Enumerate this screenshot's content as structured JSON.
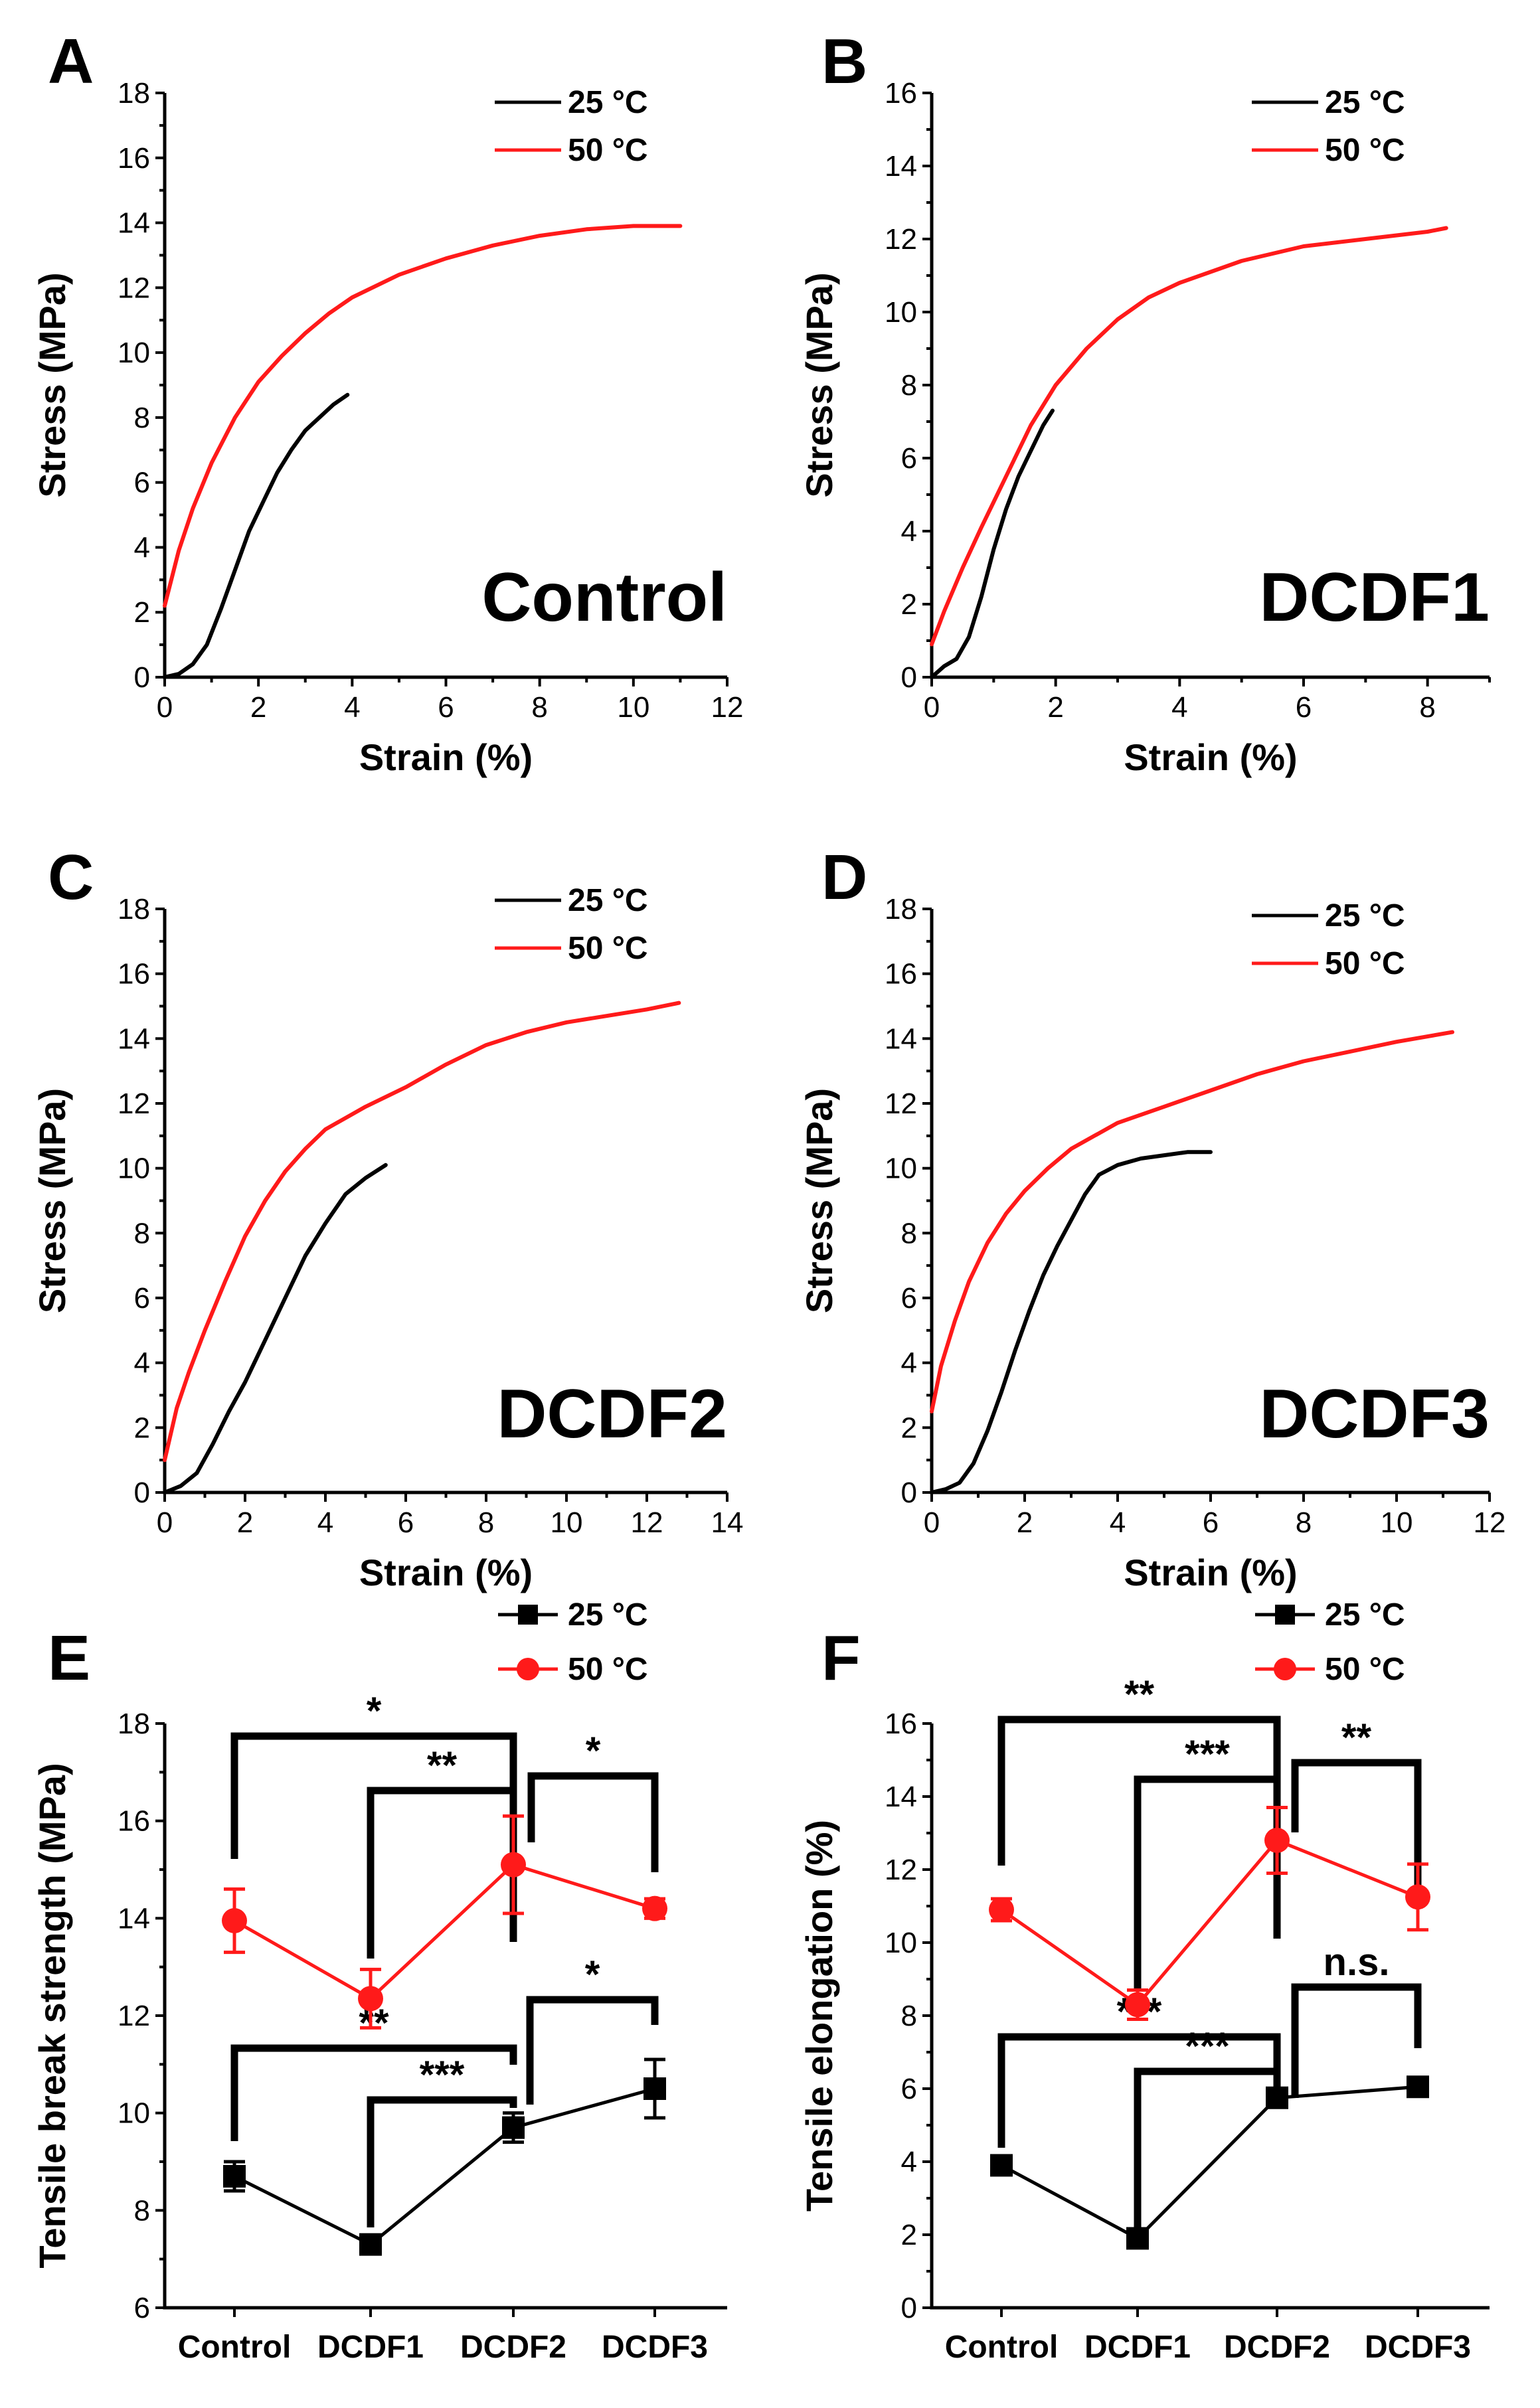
{
  "colors": {
    "c25": "#000000",
    "c50": "#ff1a1a"
  },
  "legend": {
    "s25": "25 °C",
    "s50": "50 °C"
  },
  "chart_data": [
    {
      "id": "A",
      "type": "line",
      "panel_label": "A",
      "sample": "Control",
      "xlabel": "Strain (%)",
      "ylabel": "Stress (MPa)",
      "xlim": [
        0,
        12
      ],
      "ylim": [
        0,
        18
      ],
      "xticks": [
        0,
        2,
        4,
        6,
        8,
        10,
        12
      ],
      "yticks": [
        0,
        2,
        4,
        6,
        8,
        10,
        12,
        14,
        16,
        18
      ],
      "series": [
        {
          "name": "25 °C",
          "color": "#000000",
          "x": [
            0,
            0.3,
            0.6,
            0.9,
            1.2,
            1.5,
            1.8,
            2.1,
            2.4,
            2.7,
            3.0,
            3.3,
            3.6,
            3.9
          ],
          "y": [
            0,
            0.1,
            0.4,
            1.0,
            2.1,
            3.3,
            4.5,
            5.4,
            6.3,
            7.0,
            7.6,
            8.0,
            8.4,
            8.7
          ]
        },
        {
          "name": "50 °C",
          "color": "#ff1a1a",
          "x": [
            0,
            0.3,
            0.6,
            1.0,
            1.5,
            2.0,
            2.5,
            3.0,
            3.5,
            4.0,
            5.0,
            6.0,
            7.0,
            8.0,
            9.0,
            10.0,
            11.0
          ],
          "y": [
            2.2,
            3.9,
            5.2,
            6.6,
            8.0,
            9.1,
            9.9,
            10.6,
            11.2,
            11.7,
            12.4,
            12.9,
            13.3,
            13.6,
            13.8,
            13.9,
            13.9
          ]
        }
      ]
    },
    {
      "id": "B",
      "type": "line",
      "panel_label": "B",
      "sample": "DCDF1",
      "xlabel": "Strain (%)",
      "ylabel": "Stress (MPa)",
      "xlim": [
        0,
        9
      ],
      "ylim": [
        0,
        16
      ],
      "xticks": [
        0,
        2,
        4,
        6,
        8
      ],
      "yticks": [
        0,
        2,
        4,
        6,
        8,
        10,
        12,
        14,
        16
      ],
      "series": [
        {
          "name": "25 °C",
          "color": "#000000",
          "x": [
            0,
            0.2,
            0.4,
            0.6,
            0.8,
            1.0,
            1.2,
            1.4,
            1.6,
            1.8,
            1.95
          ],
          "y": [
            0,
            0.3,
            0.5,
            1.1,
            2.2,
            3.5,
            4.6,
            5.5,
            6.2,
            6.9,
            7.3
          ]
        },
        {
          "name": "50 °C",
          "color": "#ff1a1a",
          "x": [
            0,
            0.2,
            0.5,
            0.8,
            1.2,
            1.6,
            2.0,
            2.5,
            3.0,
            3.5,
            4.0,
            5.0,
            6.0,
            7.0,
            8.0,
            8.3
          ],
          "y": [
            0.9,
            1.8,
            3.0,
            4.1,
            5.5,
            6.9,
            8.0,
            9.0,
            9.8,
            10.4,
            10.8,
            11.4,
            11.8,
            12.0,
            12.2,
            12.3
          ]
        }
      ]
    },
    {
      "id": "C",
      "type": "line",
      "panel_label": "C",
      "sample": "DCDF2",
      "xlabel": "Strain (%)",
      "ylabel": "Stress (MPa)",
      "xlim": [
        0,
        14
      ],
      "ylim": [
        0,
        18
      ],
      "xticks": [
        0,
        2,
        4,
        6,
        8,
        10,
        12,
        14
      ],
      "yticks": [
        0,
        2,
        4,
        6,
        8,
        10,
        12,
        14,
        16,
        18
      ],
      "series": [
        {
          "name": "25 °C",
          "color": "#000000",
          "x": [
            0,
            0.4,
            0.8,
            1.2,
            1.6,
            2.0,
            2.5,
            3.0,
            3.5,
            4.0,
            4.5,
            5.0,
            5.5
          ],
          "y": [
            0,
            0.2,
            0.6,
            1.5,
            2.5,
            3.4,
            4.7,
            6.0,
            7.3,
            8.3,
            9.2,
            9.7,
            10.1
          ]
        },
        {
          "name": "50 °C",
          "color": "#ff1a1a",
          "x": [
            0,
            0.3,
            0.6,
            1.0,
            1.5,
            2.0,
            2.5,
            3.0,
            3.5,
            4.0,
            5.0,
            6.0,
            7.0,
            8.0,
            9.0,
            10.0,
            11.0,
            12.0,
            12.8
          ],
          "y": [
            1.0,
            2.6,
            3.7,
            5.0,
            6.5,
            7.9,
            9.0,
            9.9,
            10.6,
            11.2,
            11.9,
            12.5,
            13.2,
            13.8,
            14.2,
            14.5,
            14.7,
            14.9,
            15.1
          ]
        }
      ]
    },
    {
      "id": "D",
      "type": "line",
      "panel_label": "D",
      "sample": "DCDF3",
      "xlabel": "Strain (%)",
      "ylabel": "Stress (MPa)",
      "xlim": [
        0,
        12
      ],
      "ylim": [
        0,
        18
      ],
      "xticks": [
        0,
        2,
        4,
        6,
        8,
        10,
        12
      ],
      "yticks": [
        0,
        2,
        4,
        6,
        8,
        10,
        12,
        14,
        16,
        18
      ],
      "series": [
        {
          "name": "25 °C",
          "color": "#000000",
          "x": [
            0,
            0.3,
            0.6,
            0.9,
            1.2,
            1.5,
            1.8,
            2.1,
            2.4,
            2.7,
            3.0,
            3.3,
            3.6,
            4.0,
            4.5,
            5.0,
            5.5,
            6.0
          ],
          "y": [
            0,
            0.1,
            0.3,
            0.9,
            1.9,
            3.1,
            4.4,
            5.6,
            6.7,
            7.6,
            8.4,
            9.2,
            9.8,
            10.1,
            10.3,
            10.4,
            10.5,
            10.5
          ]
        },
        {
          "name": "50 °C",
          "color": "#ff1a1a",
          "x": [
            0,
            0.2,
            0.5,
            0.8,
            1.2,
            1.6,
            2.0,
            2.5,
            3.0,
            3.5,
            4.0,
            5.0,
            6.0,
            7.0,
            8.0,
            9.0,
            10.0,
            11.2
          ],
          "y": [
            2.5,
            3.9,
            5.3,
            6.5,
            7.7,
            8.6,
            9.3,
            10.0,
            10.6,
            11.0,
            11.4,
            11.9,
            12.4,
            12.9,
            13.3,
            13.6,
            13.9,
            14.2
          ]
        }
      ]
    },
    {
      "id": "E",
      "type": "line",
      "panel_label": "E",
      "sample": "",
      "xlabel": "",
      "ylabel": "Tensile break strength (MPa)",
      "ylim": [
        6,
        18
      ],
      "yticks": [
        6,
        8,
        10,
        12,
        14,
        16,
        18
      ],
      "categories": [
        "Control",
        "DCDF1",
        "DCDF2",
        "DCDF3"
      ],
      "series": [
        {
          "name": "25 °C",
          "color": "#000000",
          "marker": "square",
          "values": [
            8.7,
            7.3,
            9.7,
            10.5
          ],
          "errors": [
            0.3,
            0.1,
            0.3,
            0.6
          ]
        },
        {
          "name": "50 °C",
          "color": "#ff1a1a",
          "marker": "circle",
          "values": [
            13.95,
            12.35,
            15.1,
            14.2
          ],
          "errors": [
            0.65,
            0.6,
            1.0,
            0.2
          ]
        }
      ],
      "significance": [
        {
          "from": "Control",
          "to": "DCDF2",
          "label": "*"
        },
        {
          "from": "DCDF1",
          "to": "DCDF2",
          "label": "**"
        },
        {
          "from": "DCDF2",
          "to": "DCDF3",
          "label": "*"
        },
        {
          "from": "Control",
          "to": "DCDF2",
          "label": "**"
        },
        {
          "from": "DCDF1",
          "to": "DCDF2",
          "label": "***"
        },
        {
          "from": "DCDF2",
          "to": "DCDF3",
          "label": "*"
        }
      ]
    },
    {
      "id": "F",
      "type": "line",
      "panel_label": "F",
      "sample": "",
      "xlabel": "",
      "ylabel": "Tensile elongation (%)",
      "ylim": [
        0,
        16
      ],
      "yticks": [
        0,
        2,
        4,
        6,
        8,
        10,
        12,
        14,
        16
      ],
      "categories": [
        "Control",
        "DCDF1",
        "DCDF2",
        "DCDF3"
      ],
      "series": [
        {
          "name": "25 °C",
          "color": "#000000",
          "marker": "square",
          "values": [
            3.9,
            1.9,
            5.75,
            6.05
          ],
          "errors": [
            0.2,
            0.15,
            0.2,
            0.15
          ]
        },
        {
          "name": "50 °C",
          "color": "#ff1a1a",
          "marker": "circle",
          "values": [
            10.9,
            8.3,
            12.8,
            11.25
          ],
          "errors": [
            0.3,
            0.4,
            0.9,
            0.9
          ]
        }
      ],
      "significance": [
        {
          "from": "Control",
          "to": "DCDF2",
          "label": "**"
        },
        {
          "from": "DCDF1",
          "to": "DCDF2",
          "label": "***"
        },
        {
          "from": "DCDF2",
          "to": "DCDF3",
          "label": "**"
        },
        {
          "from": "Control",
          "to": "DCDF2",
          "label": "***"
        },
        {
          "from": "DCDF1",
          "to": "DCDF2",
          "label": "***"
        },
        {
          "from": "DCDF2",
          "to": "DCDF3",
          "label": "n.s."
        }
      ]
    }
  ]
}
